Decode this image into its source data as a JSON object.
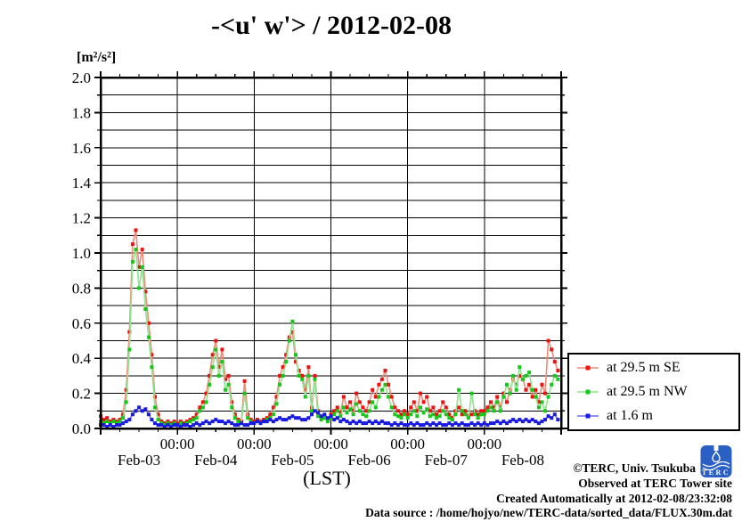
{
  "title": "-<u' w'> / 2012-02-08",
  "y_axis_unit": "[m²/s²]",
  "x_axis_label": "(LST)",
  "credits": {
    "line1": "©TERC, Univ. Tsukuba",
    "line2": "Observed at TERC Tower site",
    "line3": "Created Automatically at 2012-02-08/23:32:08",
    "line4": "Data source : /home/hojyo/new/TERC-data/sorted_data/FLUX.30m.dat"
  },
  "logo": {
    "text": "TERC",
    "color": "#2a5fc4"
  },
  "chart_data": {
    "type": "line",
    "title": "-<u' w'> / 2012-02-08",
    "xlabel": "(LST)",
    "ylabel": "[m²/s²]",
    "ylim": [
      0,
      2.0
    ],
    "y_major_tick": 0.2,
    "y_minor_tick": 0.1,
    "x_origin": "2012-02-03 00:00 LST",
    "xlim_hours": [
      0,
      144
    ],
    "x_major_tick_hours": 24,
    "x_minor_tick_hours": 6,
    "x_major_tick_label": "00:00",
    "day_labels": [
      "Feb-03",
      "Feb-04",
      "Feb-05",
      "Feb-06",
      "Feb-07",
      "Feb-08"
    ],
    "grid": {
      "horizontal_every": 0.1,
      "vertical_every_hours": 24
    },
    "legend_position": "outside-right",
    "sample_interval_hours": 1,
    "series": [
      {
        "name": "at 29.5 m SE",
        "marker_color": "#ee1111",
        "line_color": "#f28a7a",
        "values": [
          0.07,
          0.05,
          0.06,
          0.04,
          0.05,
          0.04,
          0.05,
          0.08,
          0.22,
          0.55,
          1.05,
          1.13,
          0.92,
          1.02,
          0.78,
          0.6,
          0.42,
          0.18,
          0.08,
          0.04,
          0.03,
          0.04,
          0.03,
          0.04,
          0.03,
          0.04,
          0.03,
          0.04,
          0.05,
          0.06,
          0.08,
          0.12,
          0.15,
          0.2,
          0.3,
          0.42,
          0.5,
          0.35,
          0.45,
          0.28,
          0.3,
          0.15,
          0.08,
          0.05,
          0.04,
          0.27,
          0.08,
          0.05,
          0.04,
          0.05,
          0.04,
          0.05,
          0.06,
          0.08,
          0.12,
          0.18,
          0.3,
          0.35,
          0.42,
          0.52,
          0.55,
          0.38,
          0.33,
          0.3,
          0.22,
          0.35,
          0.12,
          0.3,
          0.1,
          0.06,
          0.07,
          0.05,
          0.08,
          0.1,
          0.12,
          0.09,
          0.18,
          0.12,
          0.15,
          0.1,
          0.2,
          0.15,
          0.12,
          0.1,
          0.15,
          0.22,
          0.18,
          0.25,
          0.28,
          0.33,
          0.25,
          0.18,
          0.12,
          0.1,
          0.08,
          0.1,
          0.08,
          0.12,
          0.15,
          0.1,
          0.2,
          0.15,
          0.18,
          0.1,
          0.12,
          0.08,
          0.1,
          0.15,
          0.12,
          0.08,
          0.06,
          0.1,
          0.12,
          0.08,
          0.1,
          0.07,
          0.08,
          0.1,
          0.08,
          0.1,
          0.1,
          0.12,
          0.15,
          0.12,
          0.18,
          0.12,
          0.2,
          0.15,
          0.22,
          0.28,
          0.25,
          0.3,
          0.28,
          0.22,
          0.25,
          0.18,
          0.22,
          0.15,
          0.25,
          0.2,
          0.5,
          0.45,
          0.38,
          0.33
        ]
      },
      {
        "name": "at 29.5 m NW",
        "marker_color": "#16c81a",
        "line_color": "#8fe58f",
        "values": [
          0.04,
          0.03,
          0.04,
          0.03,
          0.04,
          0.03,
          0.04,
          0.06,
          0.15,
          0.45,
          0.95,
          1.02,
          0.8,
          0.92,
          0.68,
          0.52,
          0.35,
          0.12,
          0.05,
          0.03,
          0.02,
          0.03,
          0.02,
          0.03,
          0.02,
          0.03,
          0.02,
          0.03,
          0.04,
          0.05,
          0.06,
          0.1,
          0.12,
          0.15,
          0.25,
          0.35,
          0.45,
          0.3,
          0.38,
          0.22,
          0.25,
          0.12,
          0.06,
          0.04,
          0.03,
          0.2,
          0.06,
          0.04,
          0.03,
          0.04,
          0.03,
          0.04,
          0.05,
          0.06,
          0.08,
          0.14,
          0.25,
          0.3,
          0.38,
          0.5,
          0.61,
          0.42,
          0.3,
          0.28,
          0.18,
          0.3,
          0.1,
          0.28,
          0.07,
          0.05,
          0.06,
          0.04,
          0.06,
          0.08,
          0.1,
          0.07,
          0.12,
          0.09,
          0.11,
          0.08,
          0.14,
          0.1,
          0.08,
          0.07,
          0.1,
          0.15,
          0.12,
          0.18,
          0.22,
          0.25,
          0.18,
          0.12,
          0.08,
          0.07,
          0.06,
          0.08,
          0.06,
          0.08,
          0.1,
          0.07,
          0.12,
          0.09,
          0.11,
          0.07,
          0.08,
          0.06,
          0.07,
          0.1,
          0.08,
          0.06,
          0.05,
          0.08,
          0.22,
          0.1,
          0.08,
          0.06,
          0.2,
          0.08,
          0.06,
          0.08,
          0.08,
          0.1,
          0.12,
          0.1,
          0.15,
          0.1,
          0.18,
          0.25,
          0.2,
          0.3,
          0.22,
          0.35,
          0.28,
          0.3,
          0.32,
          0.22,
          0.18,
          0.12,
          0.15,
          0.1,
          0.18,
          0.25,
          0.3,
          0.28
        ]
      },
      {
        "name": "at 1.6 m",
        "marker_color": "#1a1ae0",
        "line_color": "#6d6df0",
        "values": [
          0.02,
          0.02,
          0.01,
          0.02,
          0.01,
          0.02,
          0.02,
          0.03,
          0.04,
          0.05,
          0.08,
          0.1,
          0.12,
          0.1,
          0.11,
          0.08,
          0.05,
          0.03,
          0.02,
          0.02,
          0.01,
          0.02,
          0.01,
          0.02,
          0.02,
          0.01,
          0.02,
          0.02,
          0.01,
          0.02,
          0.03,
          0.02,
          0.03,
          0.04,
          0.03,
          0.04,
          0.05,
          0.04,
          0.04,
          0.03,
          0.04,
          0.03,
          0.02,
          0.02,
          0.03,
          0.02,
          0.02,
          0.03,
          0.03,
          0.04,
          0.03,
          0.04,
          0.04,
          0.05,
          0.04,
          0.05,
          0.06,
          0.05,
          0.05,
          0.06,
          0.07,
          0.06,
          0.06,
          0.05,
          0.05,
          0.06,
          0.08,
          0.1,
          0.09,
          0.07,
          0.08,
          0.06,
          0.07,
          0.05,
          0.06,
          0.04,
          0.05,
          0.04,
          0.03,
          0.04,
          0.03,
          0.04,
          0.03,
          0.03,
          0.04,
          0.03,
          0.04,
          0.03,
          0.04,
          0.03,
          0.03,
          0.02,
          0.03,
          0.02,
          0.03,
          0.02,
          0.02,
          0.03,
          0.02,
          0.03,
          0.02,
          0.02,
          0.03,
          0.02,
          0.03,
          0.02,
          0.03,
          0.02,
          0.02,
          0.03,
          0.02,
          0.03,
          0.02,
          0.03,
          0.02,
          0.02,
          0.03,
          0.02,
          0.03,
          0.02,
          0.03,
          0.02,
          0.03,
          0.03,
          0.04,
          0.03,
          0.04,
          0.03,
          0.04,
          0.05,
          0.04,
          0.05,
          0.04,
          0.05,
          0.04,
          0.05,
          0.04,
          0.03,
          0.04,
          0.05,
          0.07,
          0.06,
          0.08,
          0.05
        ]
      }
    ]
  }
}
